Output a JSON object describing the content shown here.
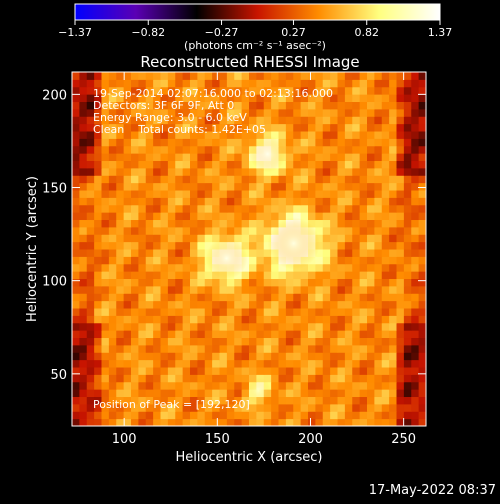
{
  "chart_data": {
    "type": "heatmap",
    "title": "Reconstructed RHESSI Image",
    "xlabel": "Heliocentric X (arcsec)",
    "ylabel": "Heliocentric Y (arcsec)",
    "xlim": [
      72,
      262
    ],
    "ylim": [
      22,
      212
    ],
    "x_ticks": [
      100,
      150,
      200,
      250
    ],
    "y_ticks": [
      50,
      100,
      150,
      200
    ],
    "colorbar": {
      "unit_label": "(photons cm⁻² s⁻¹ asec⁻²)",
      "range": [
        -1.37,
        1.37
      ],
      "ticks": [
        -1.37,
        -0.82,
        -0.27,
        0.27,
        0.82,
        1.37
      ],
      "tick_labels": [
        "−1.37",
        "−0.82",
        "−0.27",
        "0.27",
        "0.82",
        "1.37"
      ],
      "colormap": [
        "#0000ff",
        "#5a00b4",
        "#000000",
        "#c81400",
        "#ff8c00",
        "#ffff80",
        "#ffffff"
      ]
    },
    "sources": [
      {
        "x": 191,
        "y": 120,
        "sigma": 10,
        "amplitude": 1.37
      },
      {
        "x": 155,
        "y": 112,
        "sigma": 8,
        "amplitude": 1.15
      },
      {
        "x": 177,
        "y": 168,
        "sigma": 7,
        "amplitude": 0.95
      },
      {
        "x": 172,
        "y": 41,
        "sigma": 5,
        "amplitude": 0.55
      }
    ],
    "background_level": 0.45
  },
  "info": {
    "line1": "19-Sep-2014 02:07:16.000 to 02:13:16.000",
    "line2": "Detectors: 3F 6F 9F, Att 0",
    "line3": "Energy Range: 3.0 - 6.0 keV",
    "line4": "Clean    Total counts: 1.42E+05",
    "peak": "Position of Peak = [192,120]"
  },
  "timestamp": "17-May-2022 08:37"
}
